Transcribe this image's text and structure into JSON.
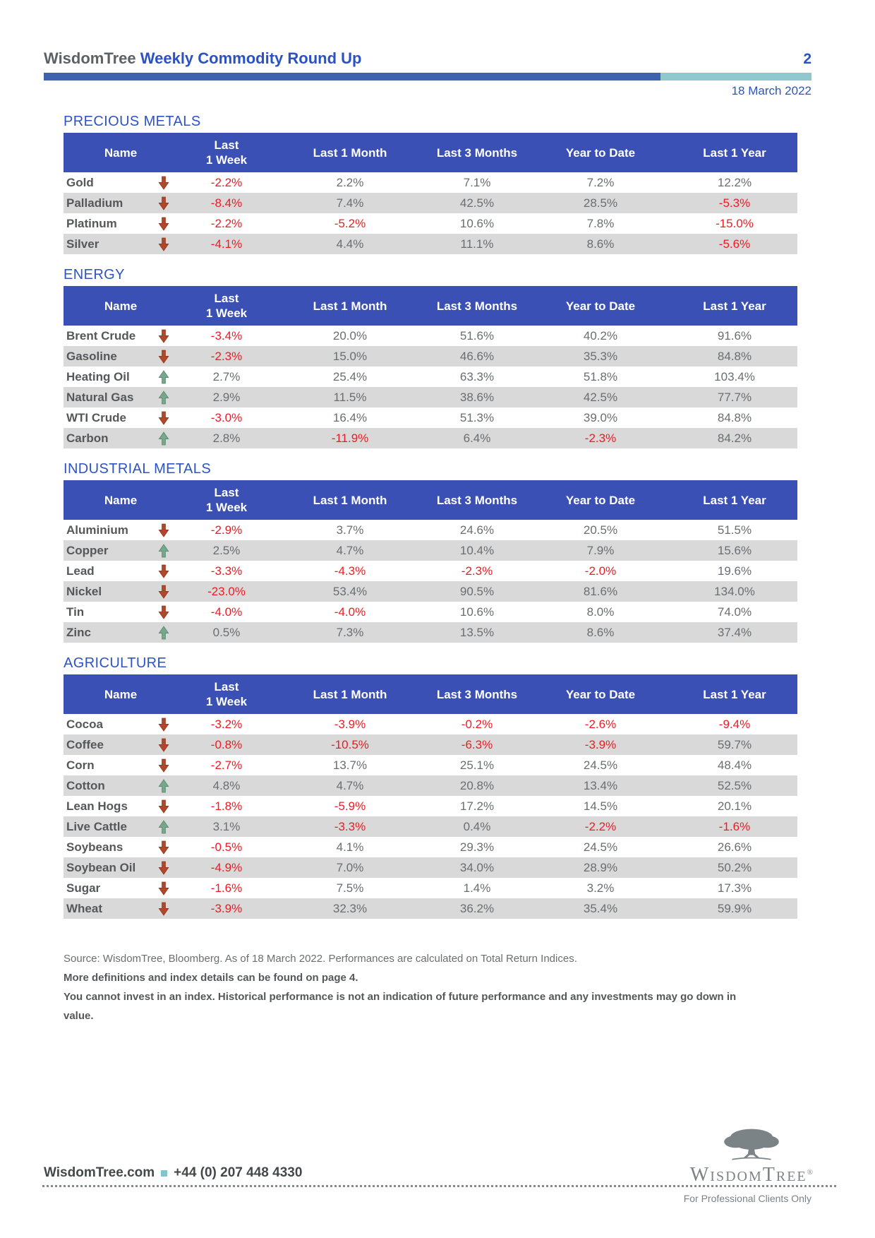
{
  "header": {
    "brand": "WisdomTree",
    "title": "Weekly Commodity Round Up",
    "page_number": "2",
    "date": "18 March 2022"
  },
  "columns": {
    "name": "Name",
    "week_l1": "Last",
    "week_l2": "1 Week",
    "month": "Last 1 Month",
    "three_months": "Last 3 Months",
    "ytd": "Year to Date",
    "year": "Last 1 Year"
  },
  "sections": [
    {
      "title": "PRECIOUS METALS",
      "rows": [
        {
          "name": "Gold",
          "direction": "down",
          "values": [
            "-2.2%",
            "2.2%",
            "7.1%",
            "7.2%",
            "12.2%"
          ]
        },
        {
          "name": "Palladium",
          "direction": "down",
          "values": [
            "-8.4%",
            "7.4%",
            "42.5%",
            "28.5%",
            "-5.3%"
          ]
        },
        {
          "name": "Platinum",
          "direction": "down",
          "values": [
            "-2.2%",
            "-5.2%",
            "10.6%",
            "7.8%",
            "-15.0%"
          ]
        },
        {
          "name": "Silver",
          "direction": "down",
          "values": [
            "-4.1%",
            "4.4%",
            "11.1%",
            "8.6%",
            "-5.6%"
          ]
        }
      ]
    },
    {
      "title": "ENERGY",
      "rows": [
        {
          "name": "Brent Crude",
          "direction": "down",
          "values": [
            "-3.4%",
            "20.0%",
            "51.6%",
            "40.2%",
            "91.6%"
          ]
        },
        {
          "name": "Gasoline",
          "direction": "down",
          "values": [
            "-2.3%",
            "15.0%",
            "46.6%",
            "35.3%",
            "84.8%"
          ]
        },
        {
          "name": "Heating Oil",
          "direction": "up",
          "values": [
            "2.7%",
            "25.4%",
            "63.3%",
            "51.8%",
            "103.4%"
          ]
        },
        {
          "name": "Natural Gas",
          "direction": "up",
          "values": [
            "2.9%",
            "11.5%",
            "38.6%",
            "42.5%",
            "77.7%"
          ]
        },
        {
          "name": "WTI Crude",
          "direction": "down",
          "values": [
            "-3.0%",
            "16.4%",
            "51.3%",
            "39.0%",
            "84.8%"
          ]
        },
        {
          "name": "Carbon",
          "direction": "up",
          "values": [
            "2.8%",
            "-11.9%",
            "6.4%",
            "-2.3%",
            "84.2%"
          ]
        }
      ]
    },
    {
      "title": "INDUSTRIAL METALS",
      "rows": [
        {
          "name": "Aluminium",
          "direction": "down",
          "values": [
            "-2.9%",
            "3.7%",
            "24.6%",
            "20.5%",
            "51.5%"
          ]
        },
        {
          "name": "Copper",
          "direction": "up",
          "values": [
            "2.5%",
            "4.7%",
            "10.4%",
            "7.9%",
            "15.6%"
          ]
        },
        {
          "name": "Lead",
          "direction": "down",
          "values": [
            "-3.3%",
            "-4.3%",
            "-2.3%",
            "-2.0%",
            "19.6%"
          ]
        },
        {
          "name": "Nickel",
          "direction": "down",
          "values": [
            "-23.0%",
            "53.4%",
            "90.5%",
            "81.6%",
            "134.0%"
          ]
        },
        {
          "name": "Tin",
          "direction": "down",
          "values": [
            "-4.0%",
            "-4.0%",
            "10.6%",
            "8.0%",
            "74.0%"
          ]
        },
        {
          "name": "Zinc",
          "direction": "up",
          "values": [
            "0.5%",
            "7.3%",
            "13.5%",
            "8.6%",
            "37.4%"
          ]
        }
      ]
    },
    {
      "title": "AGRICULTURE",
      "rows": [
        {
          "name": "Cocoa",
          "direction": "down",
          "values": [
            "-3.2%",
            "-3.9%",
            "-0.2%",
            "-2.6%",
            "-9.4%"
          ]
        },
        {
          "name": "Coffee",
          "direction": "down",
          "values": [
            "-0.8%",
            "-10.5%",
            "-6.3%",
            "-3.9%",
            "59.7%"
          ]
        },
        {
          "name": "Corn",
          "direction": "down",
          "values": [
            "-2.7%",
            "13.7%",
            "25.1%",
            "24.5%",
            "48.4%"
          ]
        },
        {
          "name": "Cotton",
          "direction": "up",
          "values": [
            "4.8%",
            "4.7%",
            "20.8%",
            "13.4%",
            "52.5%"
          ]
        },
        {
          "name": "Lean Hogs",
          "direction": "down",
          "values": [
            "-1.8%",
            "-5.9%",
            "17.2%",
            "14.5%",
            "20.1%"
          ]
        },
        {
          "name": "Live Cattle",
          "direction": "up",
          "values": [
            "3.1%",
            "-3.3%",
            "0.4%",
            "-2.2%",
            "-1.6%"
          ]
        },
        {
          "name": "Soybeans",
          "direction": "down",
          "values": [
            "-0.5%",
            "4.1%",
            "29.3%",
            "24.5%",
            "26.6%"
          ]
        },
        {
          "name": "Soybean Oil",
          "direction": "down",
          "values": [
            "-4.9%",
            "7.0%",
            "34.0%",
            "28.9%",
            "50.2%"
          ]
        },
        {
          "name": "Sugar",
          "direction": "down",
          "values": [
            "-1.6%",
            "7.5%",
            "1.4%",
            "3.2%",
            "17.3%"
          ]
        },
        {
          "name": "Wheat",
          "direction": "down",
          "values": [
            "-3.9%",
            "32.3%",
            "36.2%",
            "35.4%",
            "59.9%"
          ]
        }
      ]
    }
  ],
  "footnotes": {
    "source_line": "Source: WisdomTree, Bloomberg. As of 18 March 2022. Performances are calculated on Total Return Indices.",
    "definitions_line": "More definitions and index details can be found on page 4.",
    "disclaimer_line": "You cannot invest in an index. Historical performance is not an indication of future performance and any investments may go down in value."
  },
  "footer": {
    "website": "WisdomTree.com",
    "phone": "+44 (0) 207 448 4330",
    "logo_wordmark": "WisdomTree",
    "logo_reg": "®",
    "tagline": "For Professional Clients Only"
  },
  "colors": {
    "table_header_blue": "#3A50B5",
    "section_title_blue": "#2D53C4",
    "bar_blue": "#3D63AE",
    "bar_teal": "#8FC9CE",
    "negative_red": "#ED1C24",
    "row_alt_gray": "#D9D9D9",
    "down_arrow": "#B0492C",
    "up_arrow": "#79A78D"
  }
}
